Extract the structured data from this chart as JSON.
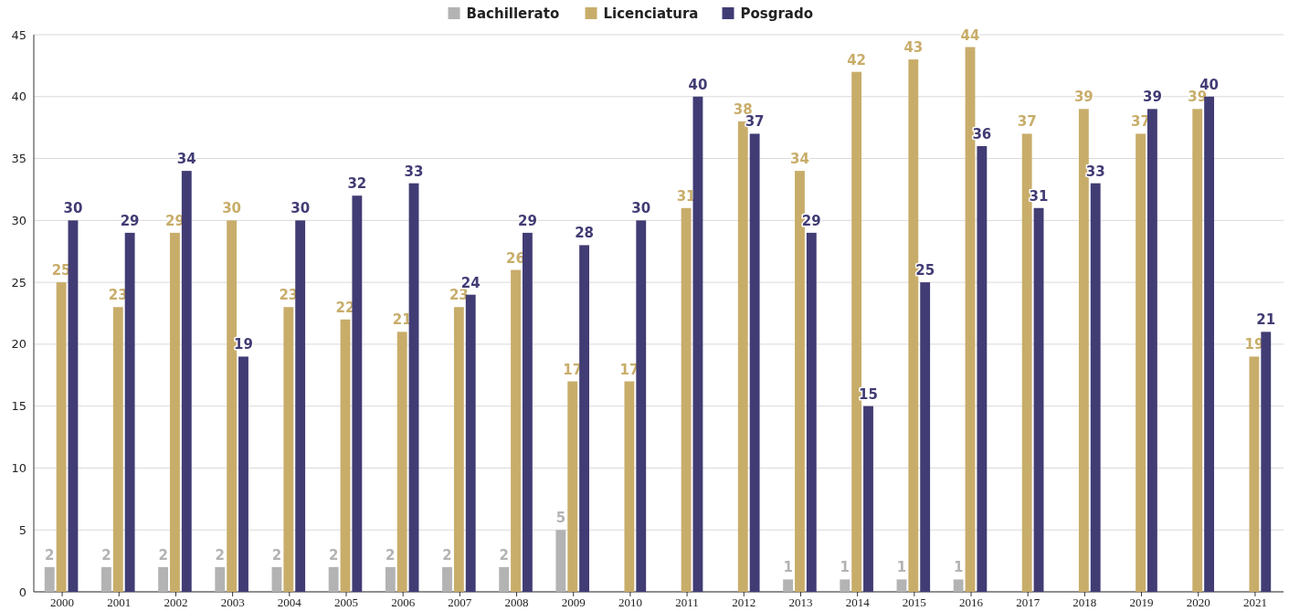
{
  "chart_data": {
    "type": "bar",
    "categories": [
      "2000",
      "2001",
      "2002",
      "2003",
      "2004",
      "2005",
      "2006",
      "2007",
      "2008",
      "2009",
      "2010",
      "2011",
      "2012",
      "2013",
      "2014",
      "2015",
      "2016",
      "2017",
      "2018",
      "2019",
      "2020",
      "2021"
    ],
    "series": [
      {
        "name": "Bachillerato",
        "color": "#b3b3b3",
        "values": [
          2,
          2,
          2,
          2,
          2,
          2,
          2,
          2,
          2,
          5,
          null,
          null,
          null,
          1,
          1,
          1,
          1,
          null,
          null,
          null,
          null,
          null
        ]
      },
      {
        "name": "Licenciatura",
        "color": "#c8ad6a",
        "values": [
          25,
          23,
          29,
          30,
          23,
          22,
          21,
          23,
          26,
          17,
          17,
          31,
          38,
          34,
          42,
          43,
          44,
          37,
          39,
          37,
          39,
          19
        ]
      },
      {
        "name": "Posgrado",
        "color": "#413c74",
        "values": [
          30,
          29,
          34,
          19,
          30,
          32,
          33,
          24,
          29,
          28,
          30,
          40,
          37,
          29,
          15,
          25,
          36,
          31,
          33,
          39,
          40,
          21
        ]
      }
    ],
    "ylim": [
      0,
      45
    ],
    "yticks": [
      0,
      5,
      10,
      15,
      20,
      25,
      30,
      35,
      40,
      45
    ],
    "grid": "y",
    "legend": "top",
    "data_labels": true
  }
}
